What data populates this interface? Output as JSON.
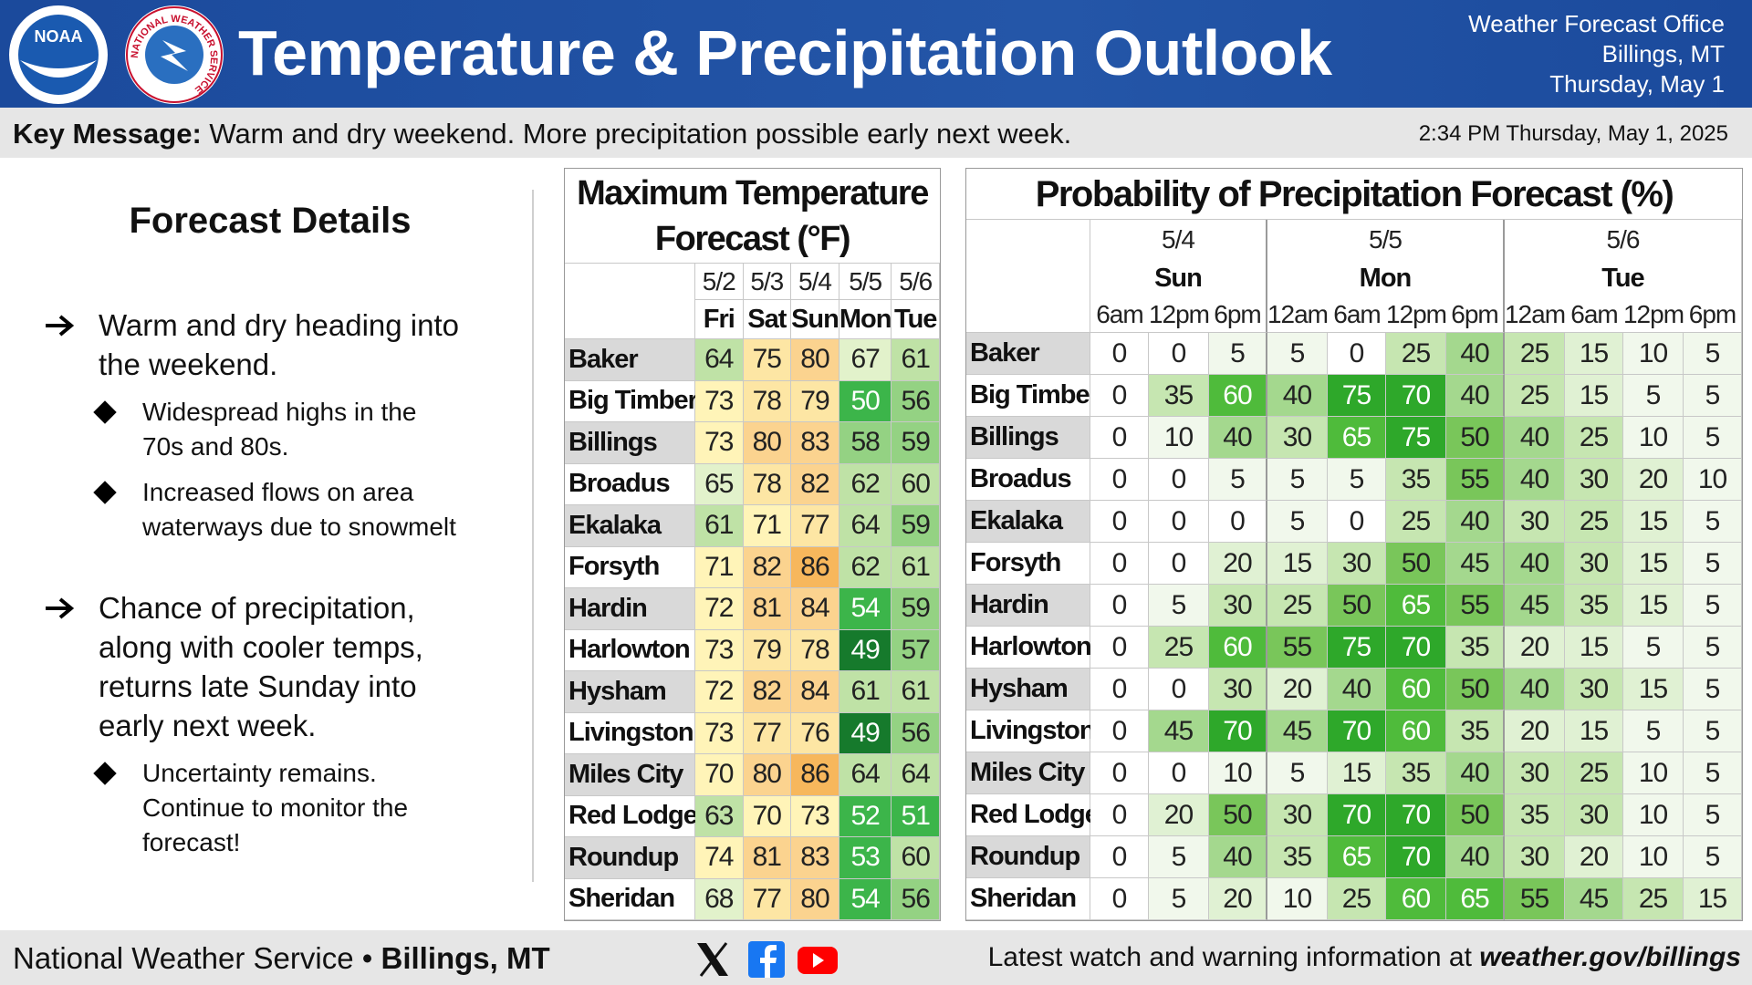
{
  "header": {
    "logos": [
      "NOAA",
      "NATIONAL WEATHER SERVICE"
    ],
    "title": "Temperature & Precipitation Outlook",
    "office": [
      "Weather Forecast Office",
      "Billings, MT",
      "Thursday, May 1"
    ]
  },
  "key_message": {
    "label": "Key Message:",
    "text": "Warm and dry weekend. More precipitation possible early next week.",
    "timestamp": "2:34 PM Thursday, May 1, 2025"
  },
  "details": {
    "title": "Forecast Details",
    "items": [
      {
        "text": "Warm and dry heading into the weekend.",
        "subitems": [
          "Widespread highs in the 70s and 80s.",
          "Increased flows on area waterways due to snowmelt"
        ]
      },
      {
        "text": "Chance of precipitation, along with cooler temps, returns late Sunday into early next week.",
        "subitems": [
          "Uncertainty remains. Continue to monitor the forecast!"
        ]
      }
    ]
  },
  "temperature_table": {
    "title": "Maximum Temperature Forecast (°F)",
    "dates": [
      "5/2",
      "5/3",
      "5/4",
      "5/5",
      "5/6"
    ],
    "days": [
      "Fri",
      "Sat",
      "Sun",
      "Mon",
      "Tue"
    ],
    "rows": [
      {
        "location": "Baker",
        "values": [
          64,
          75,
          80,
          67,
          61
        ]
      },
      {
        "location": "Big Timber",
        "values": [
          73,
          78,
          79,
          50,
          56
        ]
      },
      {
        "location": "Billings",
        "values": [
          73,
          80,
          83,
          58,
          59
        ]
      },
      {
        "location": "Broadus",
        "values": [
          65,
          78,
          82,
          62,
          60
        ]
      },
      {
        "location": "Ekalaka",
        "values": [
          61,
          71,
          77,
          64,
          59
        ]
      },
      {
        "location": "Forsyth",
        "values": [
          71,
          82,
          86,
          62,
          61
        ]
      },
      {
        "location": "Hardin",
        "values": [
          72,
          81,
          84,
          54,
          59
        ]
      },
      {
        "location": "Harlowton",
        "values": [
          73,
          79,
          78,
          49,
          57
        ]
      },
      {
        "location": "Hysham",
        "values": [
          72,
          82,
          84,
          61,
          61
        ]
      },
      {
        "location": "Livingston",
        "values": [
          73,
          77,
          76,
          49,
          56
        ]
      },
      {
        "location": "Miles City",
        "values": [
          70,
          80,
          86,
          64,
          64
        ]
      },
      {
        "location": "Red Lodge",
        "values": [
          63,
          70,
          73,
          52,
          51
        ]
      },
      {
        "location": "Roundup",
        "values": [
          74,
          81,
          83,
          53,
          60
        ]
      },
      {
        "location": "Sheridan",
        "values": [
          68,
          77,
          80,
          54,
          56
        ]
      }
    ]
  },
  "precipitation_table": {
    "title": "Probability of Precipitation Forecast (%)",
    "groups": [
      {
        "date": "5/4",
        "day": "Sun",
        "times": [
          "6am",
          "12pm",
          "6pm"
        ]
      },
      {
        "date": "5/5",
        "day": "Mon",
        "times": [
          "12am",
          "6am",
          "12pm",
          "6pm"
        ]
      },
      {
        "date": "5/6",
        "day": "Tue",
        "times": [
          "12am",
          "6am",
          "12pm",
          "6pm"
        ]
      }
    ],
    "rows": [
      {
        "location": "Baker",
        "values": [
          0,
          0,
          5,
          5,
          0,
          25,
          40,
          25,
          15,
          10,
          5
        ]
      },
      {
        "location": "Big Timber",
        "values": [
          0,
          35,
          60,
          40,
          75,
          70,
          40,
          25,
          15,
          5,
          5
        ]
      },
      {
        "location": "Billings",
        "values": [
          0,
          10,
          40,
          30,
          65,
          75,
          50,
          40,
          25,
          10,
          5
        ]
      },
      {
        "location": "Broadus",
        "values": [
          0,
          0,
          5,
          5,
          5,
          35,
          55,
          40,
          30,
          20,
          10
        ]
      },
      {
        "location": "Ekalaka",
        "values": [
          0,
          0,
          0,
          5,
          0,
          25,
          40,
          30,
          25,
          15,
          5
        ]
      },
      {
        "location": "Forsyth",
        "values": [
          0,
          0,
          20,
          15,
          30,
          50,
          45,
          40,
          30,
          15,
          5
        ]
      },
      {
        "location": "Hardin",
        "values": [
          0,
          5,
          30,
          25,
          50,
          65,
          55,
          45,
          35,
          15,
          5
        ]
      },
      {
        "location": "Harlowton",
        "values": [
          0,
          25,
          60,
          55,
          75,
          70,
          35,
          20,
          15,
          5,
          5
        ]
      },
      {
        "location": "Hysham",
        "values": [
          0,
          0,
          30,
          20,
          40,
          60,
          50,
          40,
          30,
          15,
          5
        ]
      },
      {
        "location": "Livingston",
        "values": [
          0,
          45,
          70,
          45,
          70,
          60,
          35,
          20,
          15,
          5,
          5
        ]
      },
      {
        "location": "Miles City",
        "values": [
          0,
          0,
          10,
          5,
          15,
          35,
          40,
          30,
          25,
          10,
          5
        ]
      },
      {
        "location": "Red Lodge",
        "values": [
          0,
          20,
          50,
          30,
          70,
          70,
          50,
          35,
          30,
          10,
          5
        ]
      },
      {
        "location": "Roundup",
        "values": [
          0,
          5,
          40,
          35,
          65,
          70,
          40,
          30,
          20,
          10,
          5
        ]
      },
      {
        "location": "Sheridan",
        "values": [
          0,
          5,
          20,
          10,
          25,
          60,
          65,
          55,
          45,
          25,
          15
        ]
      }
    ]
  },
  "footer": {
    "agency": "National Weather Service",
    "separator": "•",
    "office": "Billings, MT",
    "note": "Latest watch and warning information at",
    "link": "weather.gov/billings"
  }
}
